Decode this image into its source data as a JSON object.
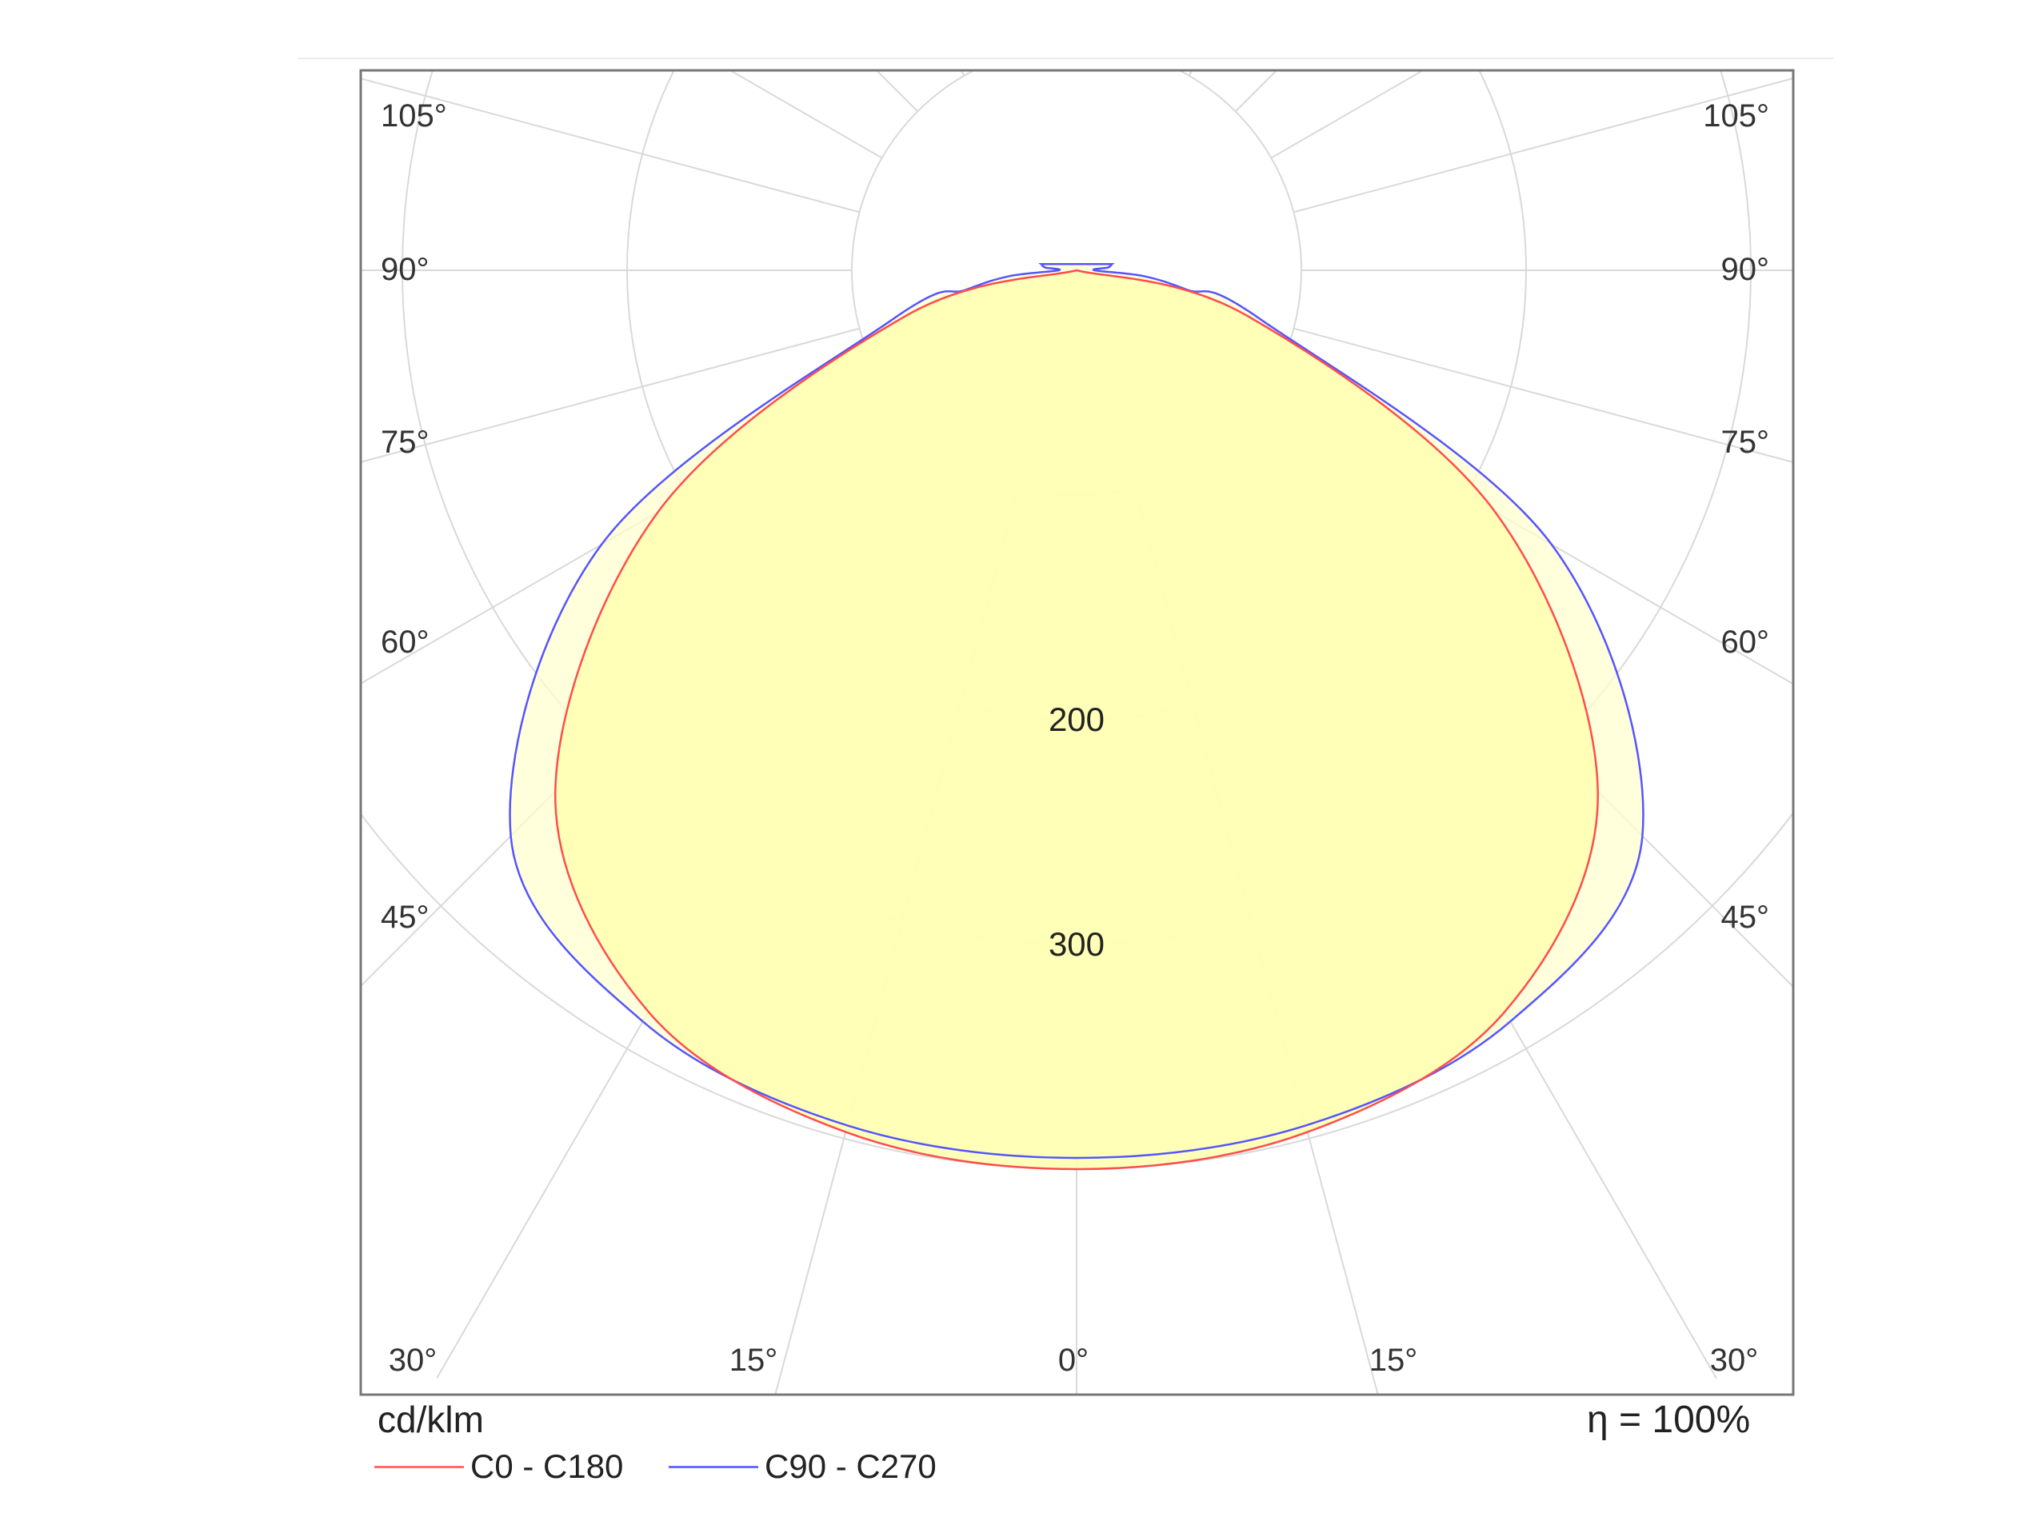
{
  "chart_data": {
    "type": "polar",
    "title": "",
    "unit_label": "cd/klm",
    "efficiency_label": "η = 100%",
    "radial_tick_labels": [
      "200",
      "300"
    ],
    "radial_ticks": [
      100,
      200,
      300,
      400
    ],
    "angle_tick_labels": {
      "bottom": [
        "30°",
        "15°",
        "0°",
        "15°",
        "30°"
      ],
      "left": [
        "105°",
        "90°",
        "75°",
        "60°",
        "45°"
      ],
      "right": [
        "105°",
        "90°",
        "75°",
        "60°",
        "45°"
      ]
    },
    "grid": true,
    "legend_position": "bottom-left",
    "colors": {
      "c0": "#ff4d4d",
      "c90": "#5555ff",
      "fill": "#ffffb0",
      "grid": "#d9d9d9"
    },
    "series": [
      {
        "name": "C0 - C180",
        "color": "#ff4d4d",
        "angles": [
          0,
          15,
          30,
          45,
          60,
          75,
          90
        ],
        "values": [
          400,
          397,
          381,
          328,
          215,
          79,
          0
        ]
      },
      {
        "name": "C90 - C270",
        "color": "#5555ff",
        "angles": [
          0,
          15,
          30,
          45,
          60,
          75,
          80,
          85,
          90,
          95,
          100
        ],
        "values": [
          395,
          394,
          386,
          356,
          244,
          85,
          50,
          30,
          8,
          14,
          16
        ]
      }
    ]
  }
}
